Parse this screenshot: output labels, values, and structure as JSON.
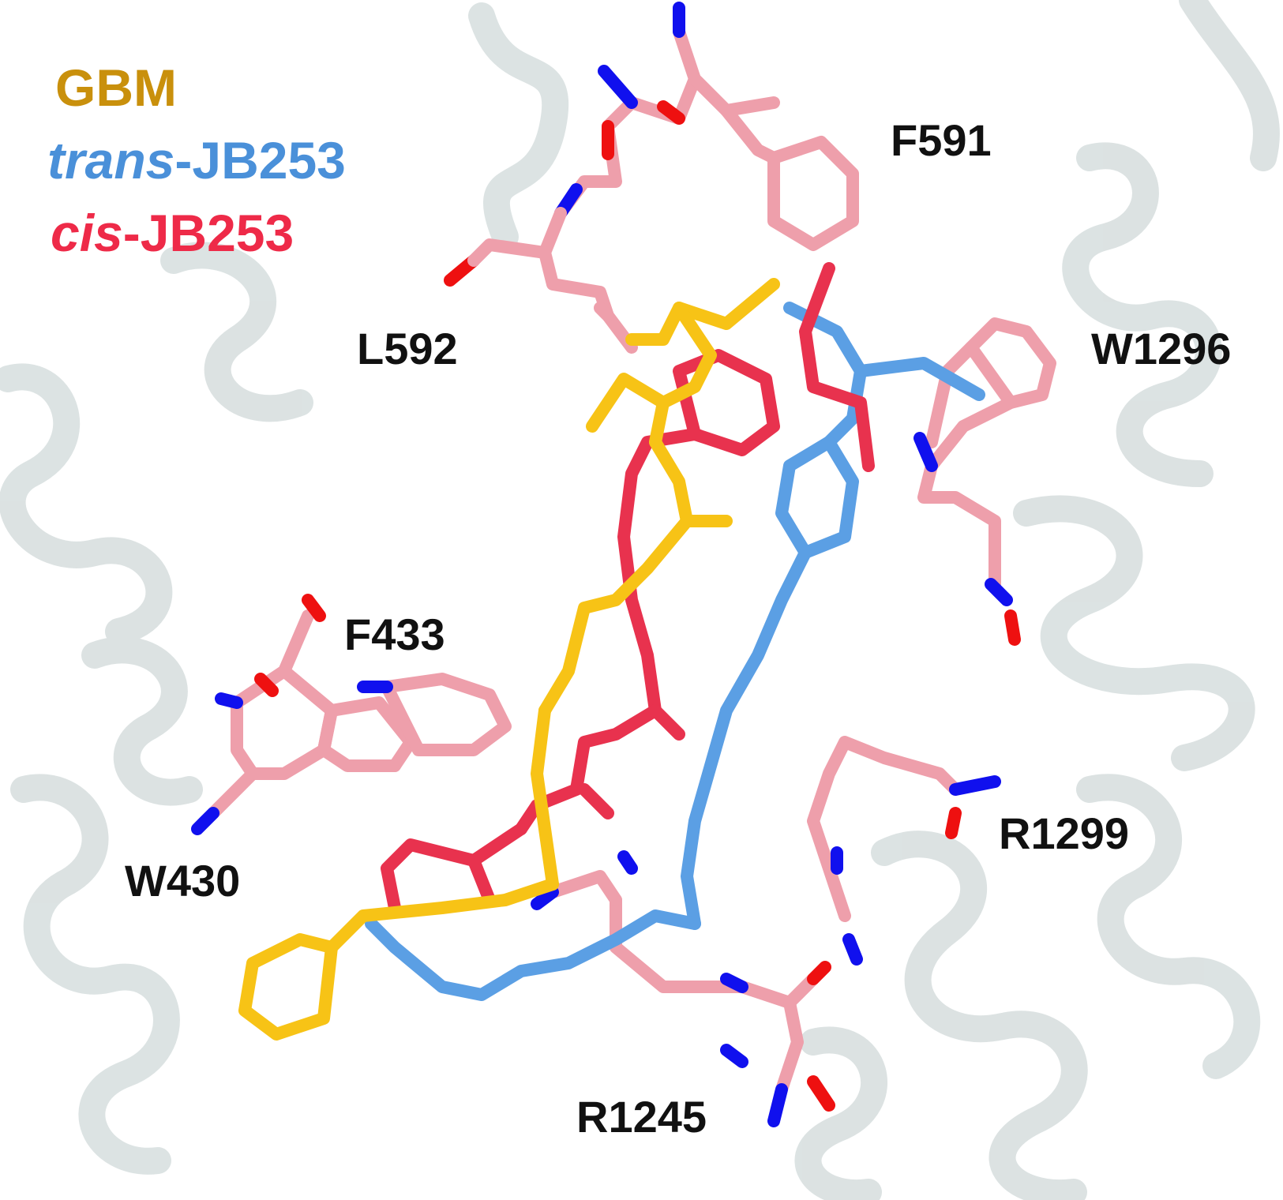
{
  "legend": {
    "gbm": {
      "label": "GBM",
      "color": "#c9900c"
    },
    "trans": {
      "prefix": "trans",
      "suffix": "-JB253",
      "color": "#4a90d9"
    },
    "cis": {
      "prefix": "cis",
      "suffix": "-JB253",
      "color": "#ee2a48"
    }
  },
  "residues": {
    "f591": "F591",
    "l592": "L592",
    "w1296": "W1296",
    "f433": "F433",
    "w430": "W430",
    "r1299": "R1299",
    "r1245": "R1245"
  },
  "colors": {
    "ribbon": "#d3dcdc",
    "residue_carbon": "#ee9fab",
    "nitrogen": "#1010ee",
    "oxygen": "#ee1010",
    "gbm_stick": "#f7c316",
    "trans_stick": "#5b9fe4",
    "cis_stick": "#e8324e"
  }
}
